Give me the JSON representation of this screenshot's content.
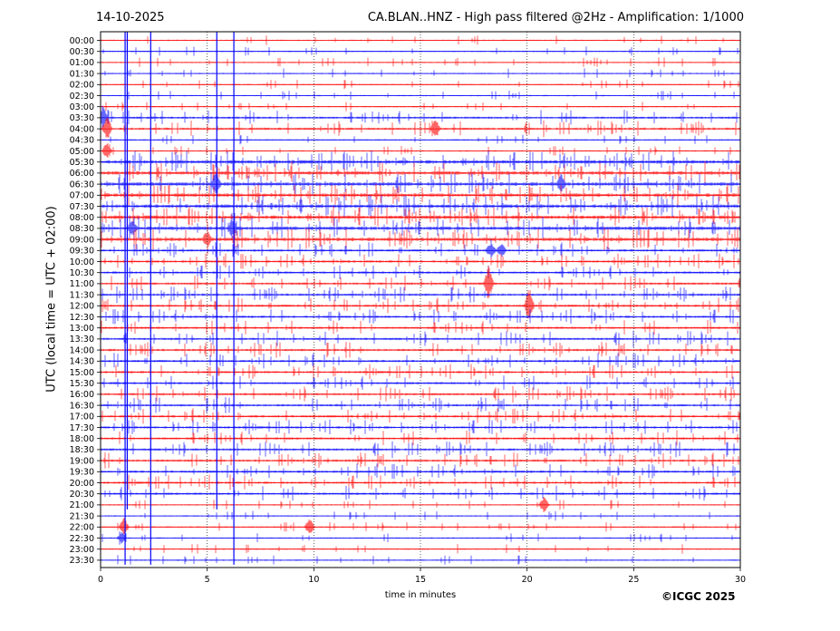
{
  "header": {
    "date": "14-10-2025",
    "title": "CA.BLAN..HNZ - High pass filtered @2Hz - Amplification: 1/1000"
  },
  "footer": {
    "copyright": "©ICGC 2025"
  },
  "chart_data": {
    "type": "line",
    "title": "CA.BLAN..HNZ - High pass filtered @2Hz - Amplification: 1/1000",
    "xlabel": "time in minutes",
    "ylabel": "UTC (local time = UTC + 02:00)",
    "xlim": [
      0,
      30
    ],
    "x_ticks": [
      "0",
      "5",
      "10",
      "15",
      "20",
      "25",
      "30"
    ],
    "grid": "vertical dotted lines at 5 min",
    "trace_colors": [
      "#ff0000",
      "#0000ff"
    ],
    "trace_labels": [
      "00:00",
      "00:30",
      "01:00",
      "01:30",
      "02:00",
      "02:30",
      "03:00",
      "03:30",
      "04:00",
      "04:30",
      "05:00",
      "05:30",
      "06:00",
      "06:30",
      "07:00",
      "07:30",
      "08:00",
      "08:30",
      "09:00",
      "09:30",
      "10:00",
      "10:30",
      "11:00",
      "11:30",
      "12:00",
      "12:30",
      "13:00",
      "13:30",
      "14:00",
      "14:30",
      "15:00",
      "15:30",
      "16:00",
      "16:30",
      "17:00",
      "17:30",
      "18:00",
      "18:30",
      "19:00",
      "19:30",
      "20:00",
      "20:30",
      "21:00",
      "21:30",
      "22:00",
      "22:30",
      "23:00",
      "23:30"
    ],
    "trace_activity": [
      0,
      0,
      0,
      0,
      0,
      0,
      0,
      1,
      1,
      0,
      0,
      2,
      2,
      2,
      2,
      2,
      2,
      2,
      2,
      1,
      1,
      1,
      1,
      1,
      1,
      1,
      1,
      1,
      1,
      1,
      1,
      1,
      1,
      1,
      1,
      1,
      1,
      1,
      1,
      1,
      1,
      1,
      0,
      0,
      0,
      0,
      0,
      0
    ],
    "spikes": [
      {
        "trace": "03:30",
        "minute": 0.1,
        "amp": 2
      },
      {
        "trace": "04:00",
        "minute": 0.3,
        "amp": 2
      },
      {
        "trace": "04:00",
        "minute": 15.7,
        "amp": 1.5
      },
      {
        "trace": "05:00",
        "minute": 0.3,
        "amp": 1.5
      },
      {
        "trace": "06:30",
        "minute": 5.4,
        "amp": 2
      },
      {
        "trace": "06:30",
        "minute": 21.6,
        "amp": 1.5
      },
      {
        "trace": "08:30",
        "minute": 1.5,
        "amp": 1.5
      },
      {
        "trace": "08:30",
        "minute": 6.2,
        "amp": 1.5
      },
      {
        "trace": "09:00",
        "minute": 5.0,
        "amp": 1.3
      },
      {
        "trace": "09:30",
        "minute": 18.3,
        "amp": 1.3
      },
      {
        "trace": "09:30",
        "minute": 18.8,
        "amp": 1.2
      },
      {
        "trace": "11:00",
        "minute": 18.2,
        "amp": 3
      },
      {
        "trace": "12:00",
        "minute": 20.1,
        "amp": 3
      },
      {
        "trace": "21:00",
        "minute": 20.8,
        "amp": 1.5
      },
      {
        "trace": "22:00",
        "minute": 1.1,
        "amp": 1.5
      },
      {
        "trace": "22:00",
        "minute": 9.8,
        "amp": 1.5
      },
      {
        "trace": "22:30",
        "minute": 1.0,
        "amp": 1.0
      }
    ],
    "vertical_glitches": [
      {
        "minute": 1.15,
        "from": "00:00",
        "to": "23:30"
      },
      {
        "minute": 1.25,
        "from": "00:00",
        "to": "21:00"
      },
      {
        "minute": 2.35,
        "from": "00:00",
        "to": "23:30"
      },
      {
        "minute": 5.45,
        "from": "00:00",
        "to": "21:00"
      },
      {
        "minute": 6.25,
        "from": "00:00",
        "to": "23:30"
      }
    ]
  }
}
